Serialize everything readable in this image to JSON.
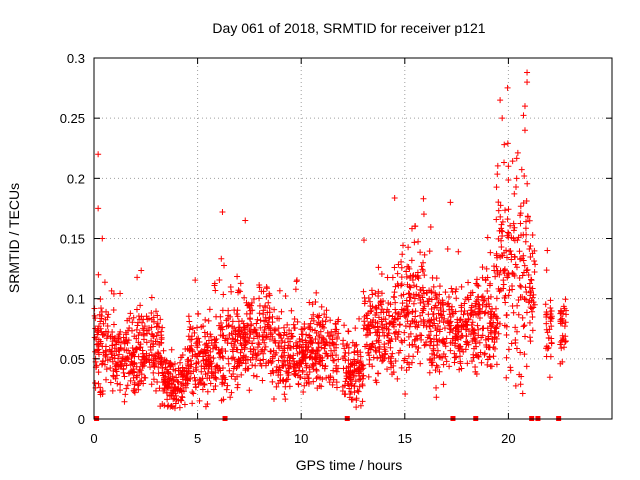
{
  "chart_data": {
    "type": "scatter",
    "title": "Day 061 of 2018, SRMTID for receiver p121",
    "xlabel": "GPS time / hours",
    "ylabel": "SRMTID / TECUs",
    "xlim": [
      0,
      25
    ],
    "ylim": [
      0,
      0.3
    ],
    "xticks": [
      0,
      5,
      10,
      15,
      20
    ],
    "xtick_labels": [
      "0",
      "5",
      "10",
      "15",
      "20"
    ],
    "yticks": [
      0,
      0.05,
      0.1,
      0.15,
      0.2,
      0.25,
      0.3
    ],
    "ytick_labels": [
      "0",
      "0.05",
      "0.1",
      "0.15",
      "0.2",
      "0.25",
      "0.3"
    ],
    "grid": true,
    "marker": "+",
    "color": "#ff0000",
    "series": [
      {
        "name": "SRMTID",
        "segments": [
          {
            "x_start": 0.0,
            "x_end": 0.9,
            "base": 0.058,
            "spread": 0.035
          },
          {
            "x_start": 0.9,
            "x_end": 2.0,
            "base": 0.05,
            "spread": 0.03
          },
          {
            "x_start": 2.0,
            "x_end": 3.3,
            "base": 0.057,
            "spread": 0.033
          },
          {
            "x_start": 3.3,
            "x_end": 4.5,
            "base": 0.03,
            "spread": 0.018
          },
          {
            "x_start": 4.5,
            "x_end": 6.0,
            "base": 0.05,
            "spread": 0.03
          },
          {
            "x_start": 6.0,
            "x_end": 7.0,
            "base": 0.06,
            "spread": 0.035
          },
          {
            "x_start": 7.0,
            "x_end": 8.5,
            "base": 0.07,
            "spread": 0.035
          },
          {
            "x_start": 8.5,
            "x_end": 10.5,
            "base": 0.053,
            "spread": 0.03
          },
          {
            "x_start": 10.5,
            "x_end": 11.8,
            "base": 0.055,
            "spread": 0.03
          },
          {
            "x_start": 12.0,
            "x_end": 13.0,
            "base": 0.04,
            "spread": 0.025
          },
          {
            "x_start": 13.0,
            "x_end": 14.5,
            "base": 0.073,
            "spread": 0.035
          },
          {
            "x_start": 14.5,
            "x_end": 16.0,
            "base": 0.09,
            "spread": 0.045
          },
          {
            "x_start": 16.0,
            "x_end": 17.0,
            "base": 0.075,
            "spread": 0.04
          },
          {
            "x_start": 17.0,
            "x_end": 18.5,
            "base": 0.075,
            "spread": 0.03
          },
          {
            "x_start": 18.5,
            "x_end": 19.4,
            "base": 0.08,
            "spread": 0.035
          },
          {
            "x_start": 19.4,
            "x_end": 21.0,
            "base": 0.12,
            "spread": 0.08
          },
          {
            "x_start": 21.0,
            "x_end": 21.3,
            "base": 0.11,
            "spread": 0.04
          },
          {
            "x_start": 21.8,
            "x_end": 22.1,
            "base": 0.07,
            "spread": 0.03
          },
          {
            "x_start": 22.5,
            "x_end": 22.8,
            "base": 0.075,
            "spread": 0.025
          }
        ],
        "notable_points": [
          {
            "x": 0.2,
            "y": 0.22
          },
          {
            "x": 0.2,
            "y": 0.175
          },
          {
            "x": 0.4,
            "y": 0.15
          },
          {
            "x": 6.2,
            "y": 0.172
          },
          {
            "x": 7.3,
            "y": 0.165
          },
          {
            "x": 15.9,
            "y": 0.183
          },
          {
            "x": 17.2,
            "y": 0.18
          },
          {
            "x": 19.6,
            "y": 0.265
          },
          {
            "x": 19.7,
            "y": 0.25
          },
          {
            "x": 19.8,
            "y": 0.228
          },
          {
            "x": 20.0,
            "y": 0.21
          },
          {
            "x": 20.4,
            "y": 0.2
          },
          {
            "x": 20.9,
            "y": 0.288
          },
          {
            "x": 20.9,
            "y": 0.28
          },
          {
            "x": 20.8,
            "y": 0.26
          },
          {
            "x": 20.8,
            "y": 0.24
          }
        ]
      }
    ],
    "zero_markers_x": [
      0.1,
      6.3,
      12.2,
      17.3,
      18.4,
      21.1,
      21.4,
      22.4
    ]
  }
}
